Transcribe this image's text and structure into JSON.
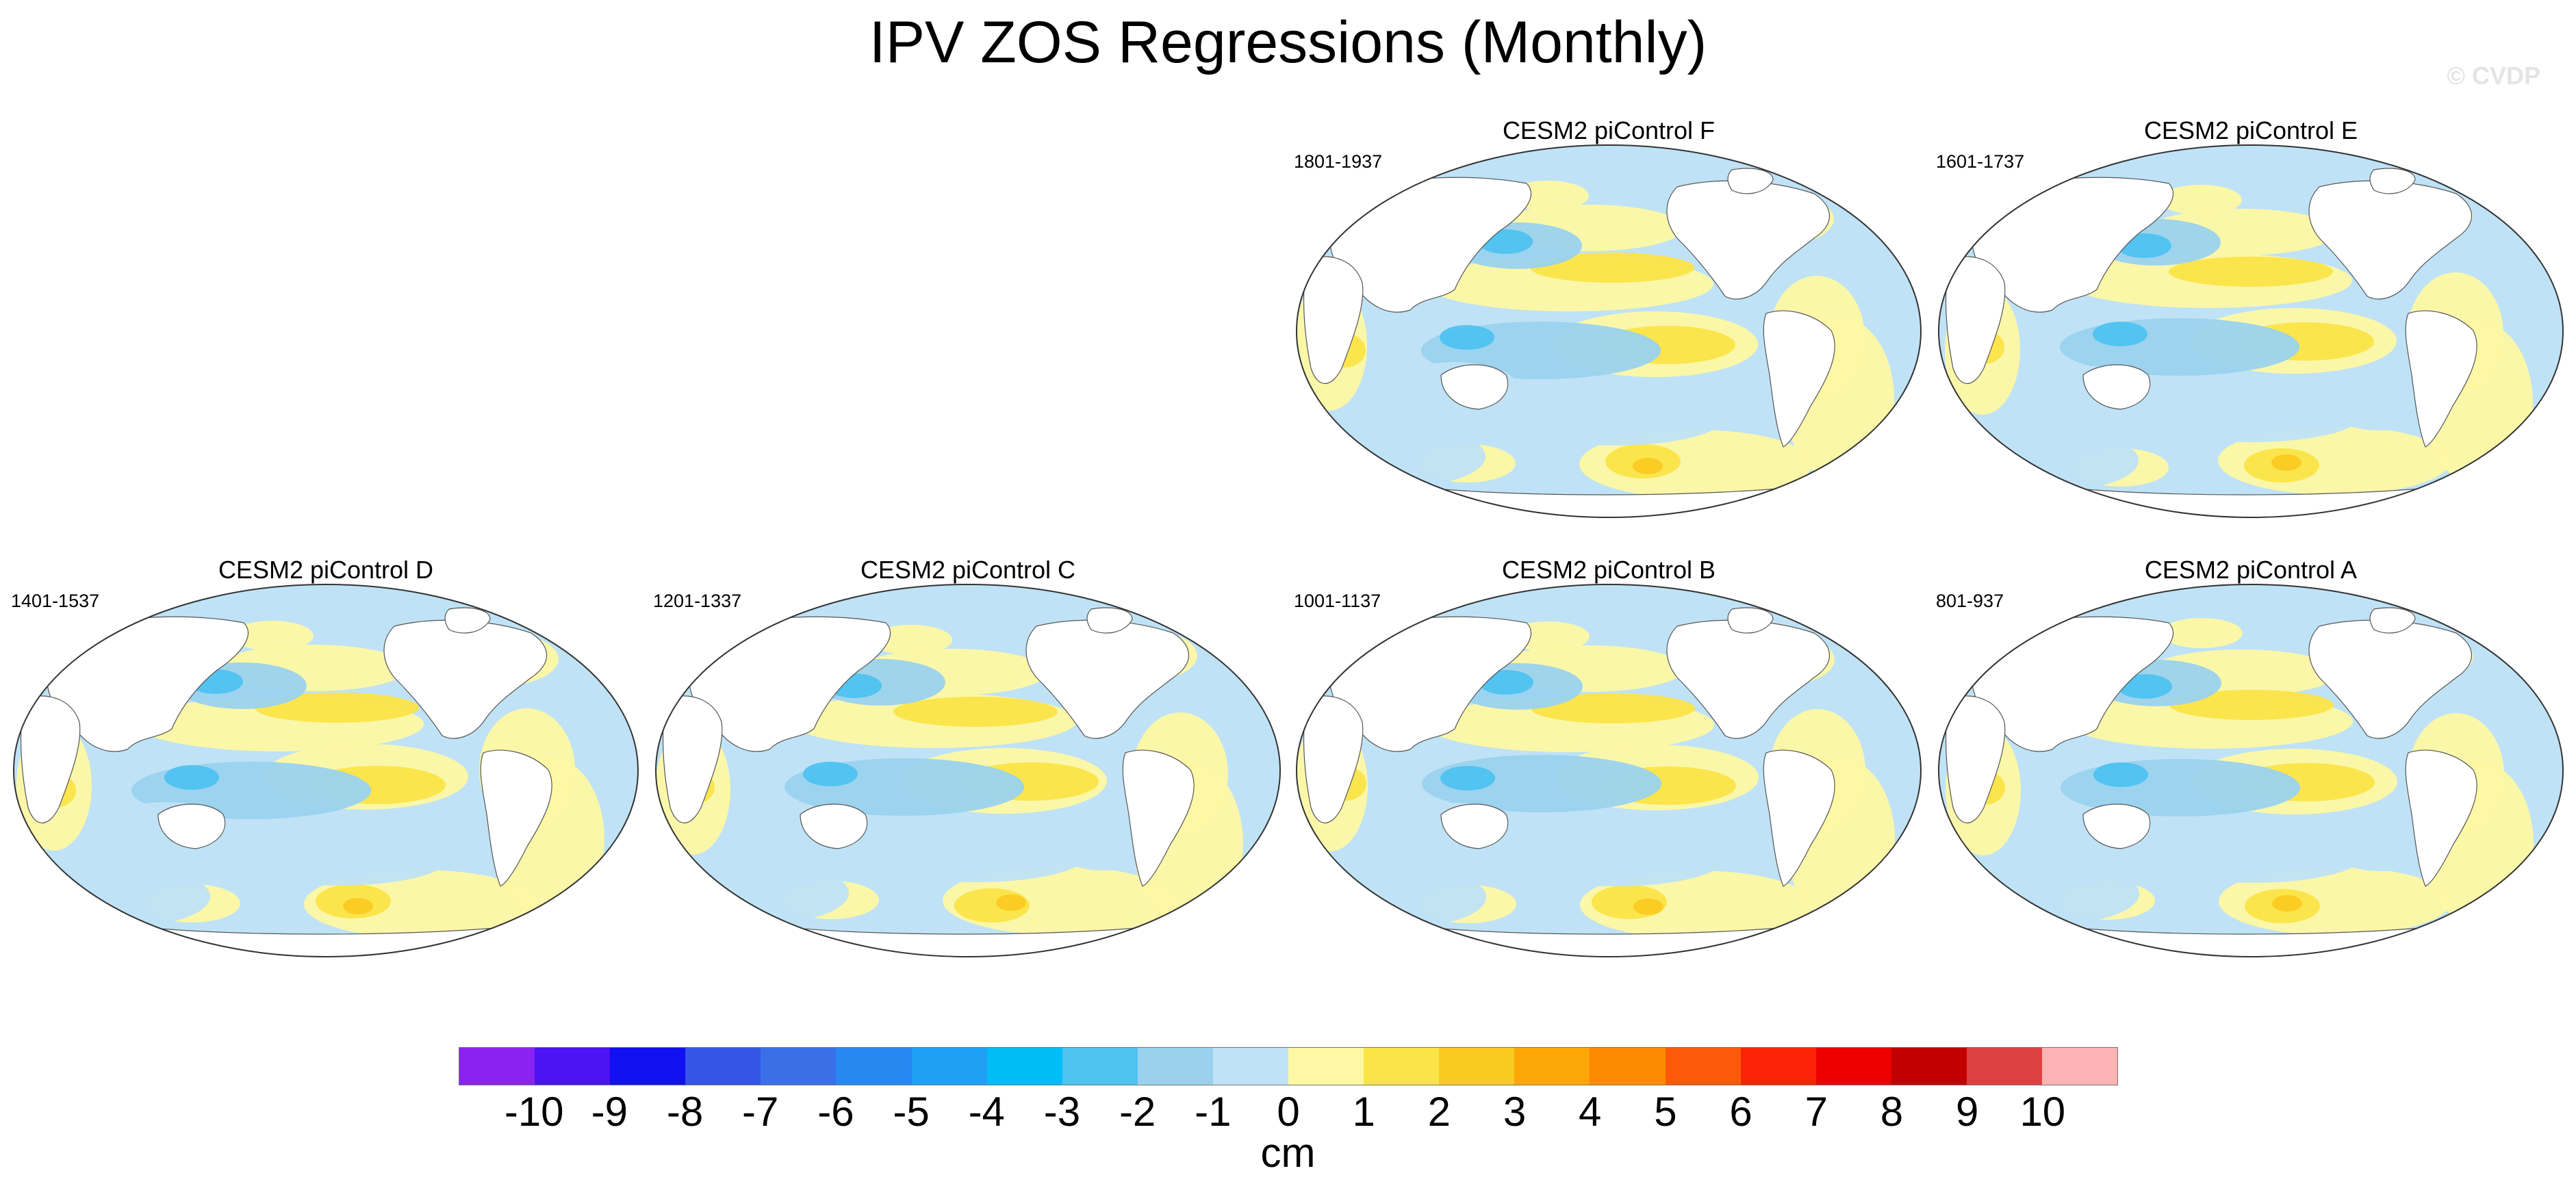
{
  "title": "IPV ZOS Regressions (Monthly)",
  "watermark": "© CVDP",
  "panels": [
    {
      "title": "CESM2 piControl F",
      "years": "1801-1937"
    },
    {
      "title": "CESM2 piControl E",
      "years": "1601-1737"
    },
    {
      "title": "CESM2 piControl D",
      "years": "1401-1537"
    },
    {
      "title": "CESM2 piControl C",
      "years": "1201-1337"
    },
    {
      "title": "CESM2 piControl B",
      "years": "1001-1137"
    },
    {
      "title": "CESM2 piControl A",
      "years": "801-937"
    }
  ],
  "colorbar": {
    "units": "cm",
    "labels": [
      "-10",
      "-9",
      "-8",
      "-7",
      "-6",
      "-5",
      "-4",
      "-3",
      "-2",
      "-1",
      "0",
      "1",
      "2",
      "3",
      "4",
      "5",
      "6",
      "7",
      "8",
      "9",
      "10"
    ],
    "colors": [
      "#8a22f2",
      "#4a14f5",
      "#1010f0",
      "#3455e6",
      "#3a6fe8",
      "#2888f2",
      "#1ea0f5",
      "#00bdf6",
      "#4fc2f0",
      "#9ad2ee",
      "#bfe2f6",
      "#fef8a4",
      "#fbe447",
      "#fbca22",
      "#fca705",
      "#fd8a00",
      "#fc5a0a",
      "#fb2306",
      "#ee0000",
      "#c20000",
      "#dd4040",
      "#fdb3b3"
    ]
  },
  "colors": {
    "ocean_negative": "#bfe2f6",
    "ocean_positive": "#fef8a4",
    "land": "#ffffff",
    "coast": "#555555"
  }
}
